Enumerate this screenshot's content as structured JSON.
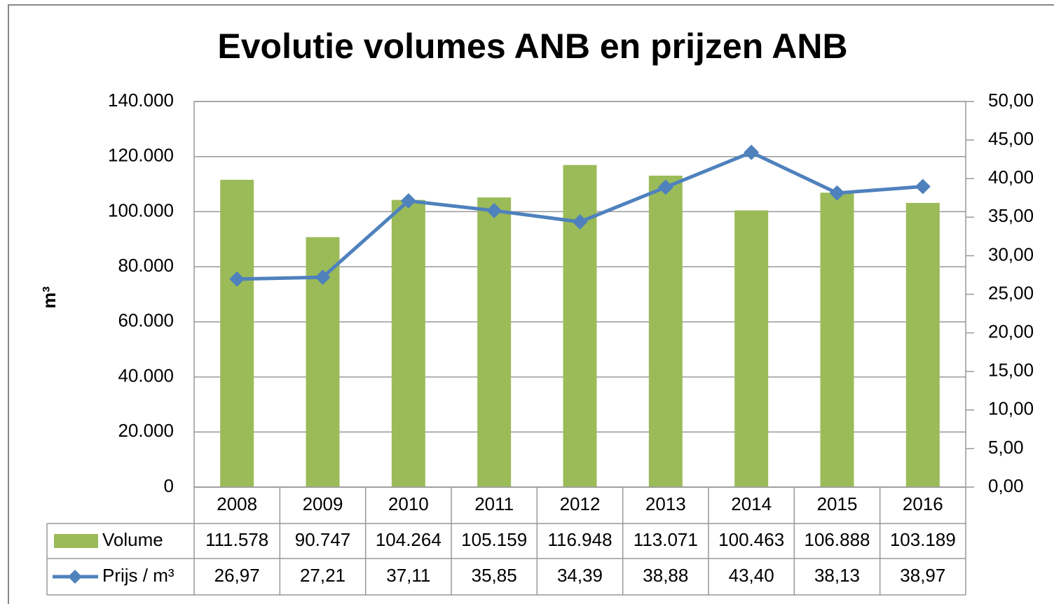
{
  "chart_data": {
    "type": "bar-line",
    "title": "Evolutie volumes ANB en prijzen ANB",
    "ylabel": "m³",
    "categories": [
      "2008",
      "2009",
      "2010",
      "2011",
      "2012",
      "2013",
      "2014",
      "2015",
      "2016"
    ],
    "series": [
      {
        "name": "Volume",
        "type": "bar",
        "color": "#9bbb59",
        "values": [
          111578,
          90747,
          104264,
          105159,
          116948,
          113071,
          100463,
          106888,
          103189
        ],
        "value_labels": [
          "111.578",
          "90.747",
          "104.264",
          "105.159",
          "116.948",
          "113.071",
          "100.463",
          "106.888",
          "103.189"
        ]
      },
      {
        "name": "Prijs / m³",
        "type": "line",
        "axis": "y2",
        "color": "#4f81bd",
        "values": [
          26.97,
          27.21,
          37.11,
          35.85,
          34.39,
          38.88,
          43.4,
          38.13,
          38.97
        ],
        "value_labels": [
          "26,97",
          "27,21",
          "37,11",
          "35,85",
          "34,39",
          "38,88",
          "43,40",
          "38,13",
          "38,97"
        ]
      }
    ],
    "ylim": [
      0,
      140000
    ],
    "yticks": [
      {
        "value": 0,
        "label": "0"
      },
      {
        "value": 20000,
        "label": "20.000"
      },
      {
        "value": 40000,
        "label": "40.000"
      },
      {
        "value": 60000,
        "label": "60.000"
      },
      {
        "value": 80000,
        "label": "80.000"
      },
      {
        "value": 100000,
        "label": "100.000"
      },
      {
        "value": 120000,
        "label": "120.000"
      },
      {
        "value": 140000,
        "label": "140.000"
      }
    ],
    "y2lim": [
      0,
      50
    ],
    "y2ticks": [
      {
        "value": 0,
        "label": "0,00"
      },
      {
        "value": 5,
        "label": "5,00"
      },
      {
        "value": 10,
        "label": "10,00"
      },
      {
        "value": 15,
        "label": "15,00"
      },
      {
        "value": 20,
        "label": "20,00"
      },
      {
        "value": 25,
        "label": "25,00"
      },
      {
        "value": 30,
        "label": "30,00"
      },
      {
        "value": 35,
        "label": "35,00"
      },
      {
        "value": 40,
        "label": "40,00"
      },
      {
        "value": 45,
        "label": "45,00"
      },
      {
        "value": 50,
        "label": "50,00"
      }
    ],
    "grid": true
  }
}
